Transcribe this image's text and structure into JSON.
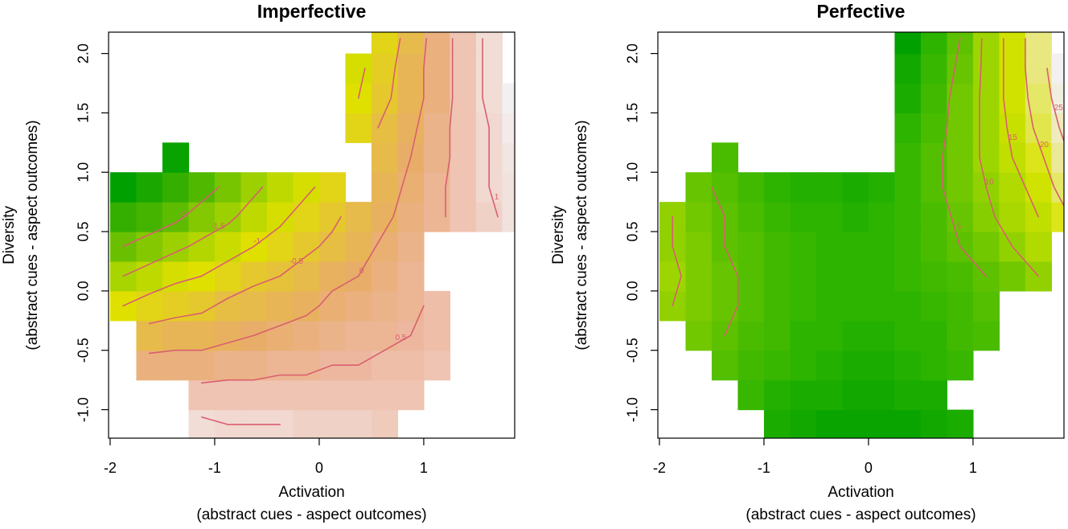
{
  "chart_data": [
    {
      "type": "heatmap",
      "title": "Imperfective",
      "xlabel": [
        "Activation",
        "(abstract cues - aspect outcomes)"
      ],
      "ylabel": [
        "Diversity",
        "(abstract cues - aspect outcomes)"
      ],
      "xlim": [
        -2.015,
        1.87
      ],
      "ylim": [
        -1.24,
        2.18
      ],
      "xticks": [
        -2,
        -1,
        0,
        1
      ],
      "yticks": [
        {
          "value": -1.0,
          "label": "-1.0"
        },
        -0.5,
        {
          "value": 0.0,
          "label": "0.0"
        },
        0.5,
        {
          "value": 1.0,
          "label": "1.0"
        },
        1.5,
        {
          "value": 2.0,
          "label": "2.0"
        }
      ],
      "x": [
        -1.875,
        -1.625,
        -1.375,
        -1.125,
        -0.875,
        -0.625,
        -0.375,
        -0.125,
        0.125,
        0.375,
        0.625,
        0.875,
        1.125,
        1.375,
        1.625,
        1.875
      ],
      "y": [
        -1.125,
        -0.875,
        -0.625,
        -0.375,
        -0.125,
        0.125,
        0.375,
        0.625,
        0.875,
        1.125,
        1.375,
        1.625,
        1.875,
        2.125
      ],
      "z": [
        [
          null,
          null,
          null,
          1.1,
          1.0,
          1.0,
          1.0,
          0.9,
          0.9,
          0.9,
          0.8,
          null,
          null,
          null,
          null,
          null
        ],
        [
          null,
          null,
          null,
          0.7,
          0.7,
          0.7,
          0.7,
          0.7,
          0.7,
          0.7,
          0.7,
          0.7,
          null,
          null,
          null,
          null
        ],
        [
          null,
          0.2,
          0.2,
          0.2,
          0.3,
          0.3,
          0.4,
          0.4,
          0.5,
          0.5,
          0.6,
          0.6,
          0.7,
          null,
          null,
          null
        ],
        [
          null,
          -0.3,
          -0.2,
          -0.2,
          -0.1,
          0.0,
          0.1,
          0.2,
          0.3,
          0.4,
          0.4,
          0.5,
          0.6,
          null,
          null,
          null
        ],
        [
          -1.0,
          -0.8,
          -0.7,
          -0.6,
          -0.4,
          -0.3,
          -0.2,
          -0.1,
          0.1,
          0.2,
          0.3,
          0.4,
          0.6,
          null,
          null,
          null
        ],
        [
          -1.5,
          -1.3,
          -1.1,
          -1.0,
          -0.8,
          -0.6,
          -0.5,
          -0.3,
          -0.1,
          0.0,
          0.2,
          0.4,
          null,
          null,
          null,
          null
        ],
        [
          -2.0,
          -1.8,
          -1.6,
          -1.4,
          -1.2,
          -1.0,
          -0.8,
          -0.6,
          -0.4,
          -0.2,
          0.1,
          0.3,
          null,
          null,
          null,
          null
        ],
        [
          -2.5,
          -2.3,
          -2.1,
          -1.8,
          -1.6,
          -1.3,
          -1.1,
          -0.8,
          -0.6,
          -0.3,
          -0.1,
          0.2,
          0.4,
          0.7,
          0.9,
          1.2
        ],
        [
          -3.1,
          -2.8,
          -2.5,
          -2.2,
          -1.9,
          -1.6,
          -1.3,
          -1.1,
          -0.8,
          null,
          -0.2,
          0.1,
          0.4,
          0.7,
          1.0,
          1.2
        ],
        [
          null,
          null,
          -3.0,
          null,
          null,
          null,
          null,
          null,
          null,
          null,
          -0.3,
          0.0,
          0.3,
          0.7,
          1.0,
          1.3
        ],
        [
          null,
          null,
          null,
          null,
          null,
          null,
          null,
          null,
          null,
          -0.8,
          -0.4,
          -0.1,
          0.3,
          0.7,
          1.0,
          1.4
        ],
        [
          null,
          null,
          null,
          null,
          null,
          null,
          null,
          null,
          null,
          -1.0,
          -0.6,
          -0.2,
          0.2,
          0.7,
          1.1,
          1.5
        ],
        [
          null,
          null,
          null,
          null,
          null,
          null,
          null,
          null,
          null,
          -1.1,
          -0.7,
          -0.2,
          0.2,
          0.7,
          1.1,
          null
        ],
        [
          null,
          null,
          null,
          null,
          null,
          null,
          null,
          null,
          null,
          null,
          -0.8,
          -0.3,
          0.2,
          0.7,
          1.1,
          null
        ]
      ],
      "colormap": [
        {
          "value": -3.1,
          "color": "#00a000"
        },
        {
          "value": -2.3,
          "color": "#45b400"
        },
        {
          "value": -1.5,
          "color": "#a8d400"
        },
        {
          "value": -1.0,
          "color": "#e0e000"
        },
        {
          "value": -0.5,
          "color": "#e6c23a"
        },
        {
          "value": 0,
          "color": "#e8ad68"
        },
        {
          "value": 0.5,
          "color": "#edb79f"
        },
        {
          "value": 1.0,
          "color": "#f1d8d0"
        },
        {
          "value": 1.5,
          "color": "#f2f0f0"
        }
      ],
      "contour_levels": [
        -2,
        -1.5,
        -1,
        -0.5,
        0,
        0.5,
        1
      ],
      "contour_color": "#d95f6e"
    },
    {
      "type": "heatmap",
      "title": "Perfective",
      "xlabel": [
        "Activation",
        "(abstract cues - aspect outcomes)"
      ],
      "ylabel": [
        "Diversity",
        "(abstract cues - aspect outcomes)"
      ],
      "xlim": [
        -2.015,
        1.87
      ],
      "ylim": [
        -1.24,
        2.18
      ],
      "xticks": [
        -2,
        -1,
        0,
        1
      ],
      "yticks": [
        {
          "value": -1.0,
          "label": "-1.0"
        },
        -0.5,
        {
          "value": 0.0,
          "label": "0.0"
        },
        0.5,
        {
          "value": 1.0,
          "label": "1.0"
        },
        1.5,
        {
          "value": 2.0,
          "label": "2.0"
        }
      ],
      "x": [
        -1.875,
        -1.625,
        -1.375,
        -1.125,
        -0.875,
        -0.625,
        -0.375,
        -0.125,
        0.125,
        0.375,
        0.625,
        0.875,
        1.125,
        1.375,
        1.625,
        1.875
      ],
      "y": [
        -1.125,
        -0.875,
        -0.625,
        -0.375,
        -0.125,
        0.125,
        0.375,
        0.625,
        0.875,
        1.125,
        1.375,
        1.625,
        1.875,
        2.125
      ],
      "z": [
        [
          null,
          null,
          null,
          null,
          -2,
          -3,
          -4,
          -4,
          -4,
          -4,
          -3,
          -2,
          null,
          null,
          null,
          null
        ],
        [
          null,
          null,
          null,
          1,
          -1,
          -2,
          -2,
          -3,
          -3,
          -2,
          -2,
          null,
          null,
          null,
          null,
          null
        ],
        [
          null,
          null,
          4,
          2,
          1,
          0,
          -1,
          -2,
          -2,
          -1,
          0,
          1,
          null,
          null,
          null,
          null
        ],
        [
          null,
          7,
          5,
          3,
          2,
          0,
          0,
          -1,
          -1,
          0,
          0,
          2,
          3,
          null,
          null,
          null
        ],
        [
          10,
          8,
          6,
          4,
          2,
          1,
          0,
          0,
          0,
          0,
          1,
          2,
          4,
          null,
          null,
          null
        ],
        [
          11,
          8,
          6,
          4,
          2,
          1,
          0,
          0,
          0,
          1,
          2,
          3,
          5,
          7,
          10,
          null
        ],
        [
          10,
          8,
          5,
          4,
          2,
          1,
          0,
          0,
          0,
          1,
          3,
          5,
          7,
          10,
          13,
          null
        ],
        [
          10,
          7,
          5,
          3,
          1,
          0,
          0,
          -1,
          0,
          1,
          3,
          6,
          9,
          12,
          15,
          19
        ],
        [
          null,
          6,
          4,
          2,
          0,
          -1,
          -1,
          -2,
          -1,
          1,
          4,
          7,
          10,
          13,
          17,
          22
        ],
        [
          null,
          null,
          3,
          null,
          null,
          null,
          null,
          null,
          null,
          1,
          4,
          7,
          11,
          15,
          19,
          24
        ],
        [
          null,
          null,
          null,
          null,
          null,
          null,
          null,
          null,
          null,
          0,
          3,
          7,
          11,
          16,
          21,
          26
        ],
        [
          null,
          null,
          null,
          null,
          null,
          null,
          null,
          null,
          null,
          -2,
          2,
          7,
          11,
          17,
          22,
          28
        ],
        [
          null,
          null,
          null,
          null,
          null,
          null,
          null,
          null,
          null,
          -3,
          1,
          6,
          11,
          17,
          23,
          29
        ],
        [
          null,
          null,
          null,
          null,
          null,
          null,
          null,
          null,
          null,
          -5,
          0,
          5,
          11,
          17,
          23,
          null
        ]
      ],
      "colormap": [
        {
          "value": -5,
          "color": "#00a000"
        },
        {
          "value": 0,
          "color": "#2db400"
        },
        {
          "value": 6,
          "color": "#66c400"
        },
        {
          "value": 12,
          "color": "#a8d800"
        },
        {
          "value": 18,
          "color": "#d8e400"
        },
        {
          "value": 24,
          "color": "#ece89a"
        },
        {
          "value": 29,
          "color": "#f2f0f0"
        }
      ],
      "contour_levels": [
        5,
        10,
        15,
        20,
        25
      ],
      "contour_color": "#d95f6e"
    }
  ]
}
